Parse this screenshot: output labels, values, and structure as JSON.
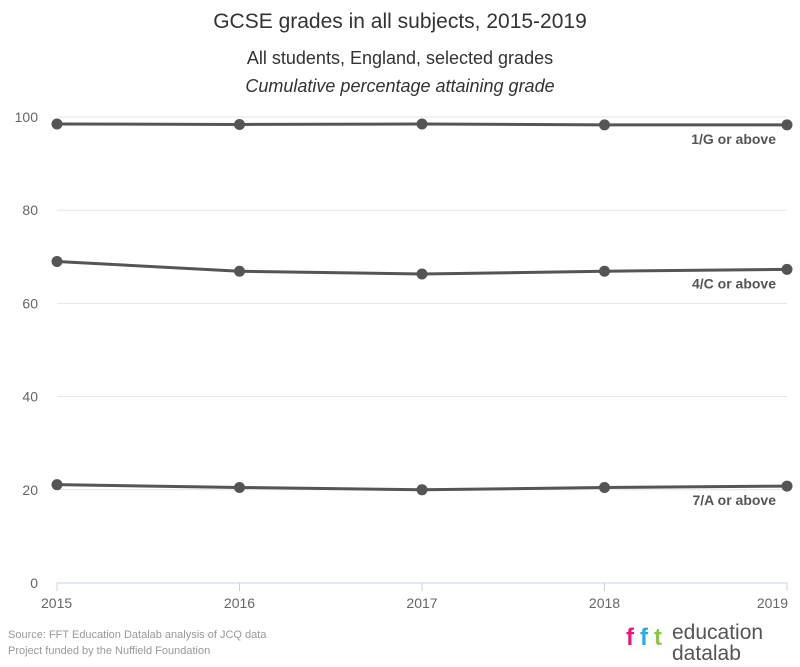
{
  "chart_data": {
    "type": "line",
    "title": "GCSE grades in all subjects, 2015-2019",
    "subtitle": "All students, England, selected grades",
    "ylabel_note": "Cumulative percentage attaining grade",
    "x": [
      "2015",
      "2016",
      "2017",
      "2018",
      "2019"
    ],
    "ylim": [
      0,
      100
    ],
    "yticks": [
      0,
      20,
      40,
      60,
      80,
      100
    ],
    "grid": true,
    "series": [
      {
        "name": "1/G or above",
        "values": [
          98.5,
          98.4,
          98.5,
          98.3,
          98.3
        ]
      },
      {
        "name": "4/C or above",
        "values": [
          69.0,
          66.9,
          66.3,
          66.9,
          67.3
        ]
      },
      {
        "name": "7/A or above",
        "values": [
          21.1,
          20.5,
          20.0,
          20.5,
          20.8
        ]
      }
    ],
    "line_color": "#555555"
  },
  "footer": {
    "source": "Source: FFT Education Datalab analysis of JCQ data",
    "funding": "Project funded by the Nuffield Foundation"
  },
  "logo": {
    "letters": "fft",
    "line1": "education",
    "line2": "datalab",
    "colors": [
      "#e5197e",
      "#29abe2",
      "#8cc63f"
    ]
  }
}
